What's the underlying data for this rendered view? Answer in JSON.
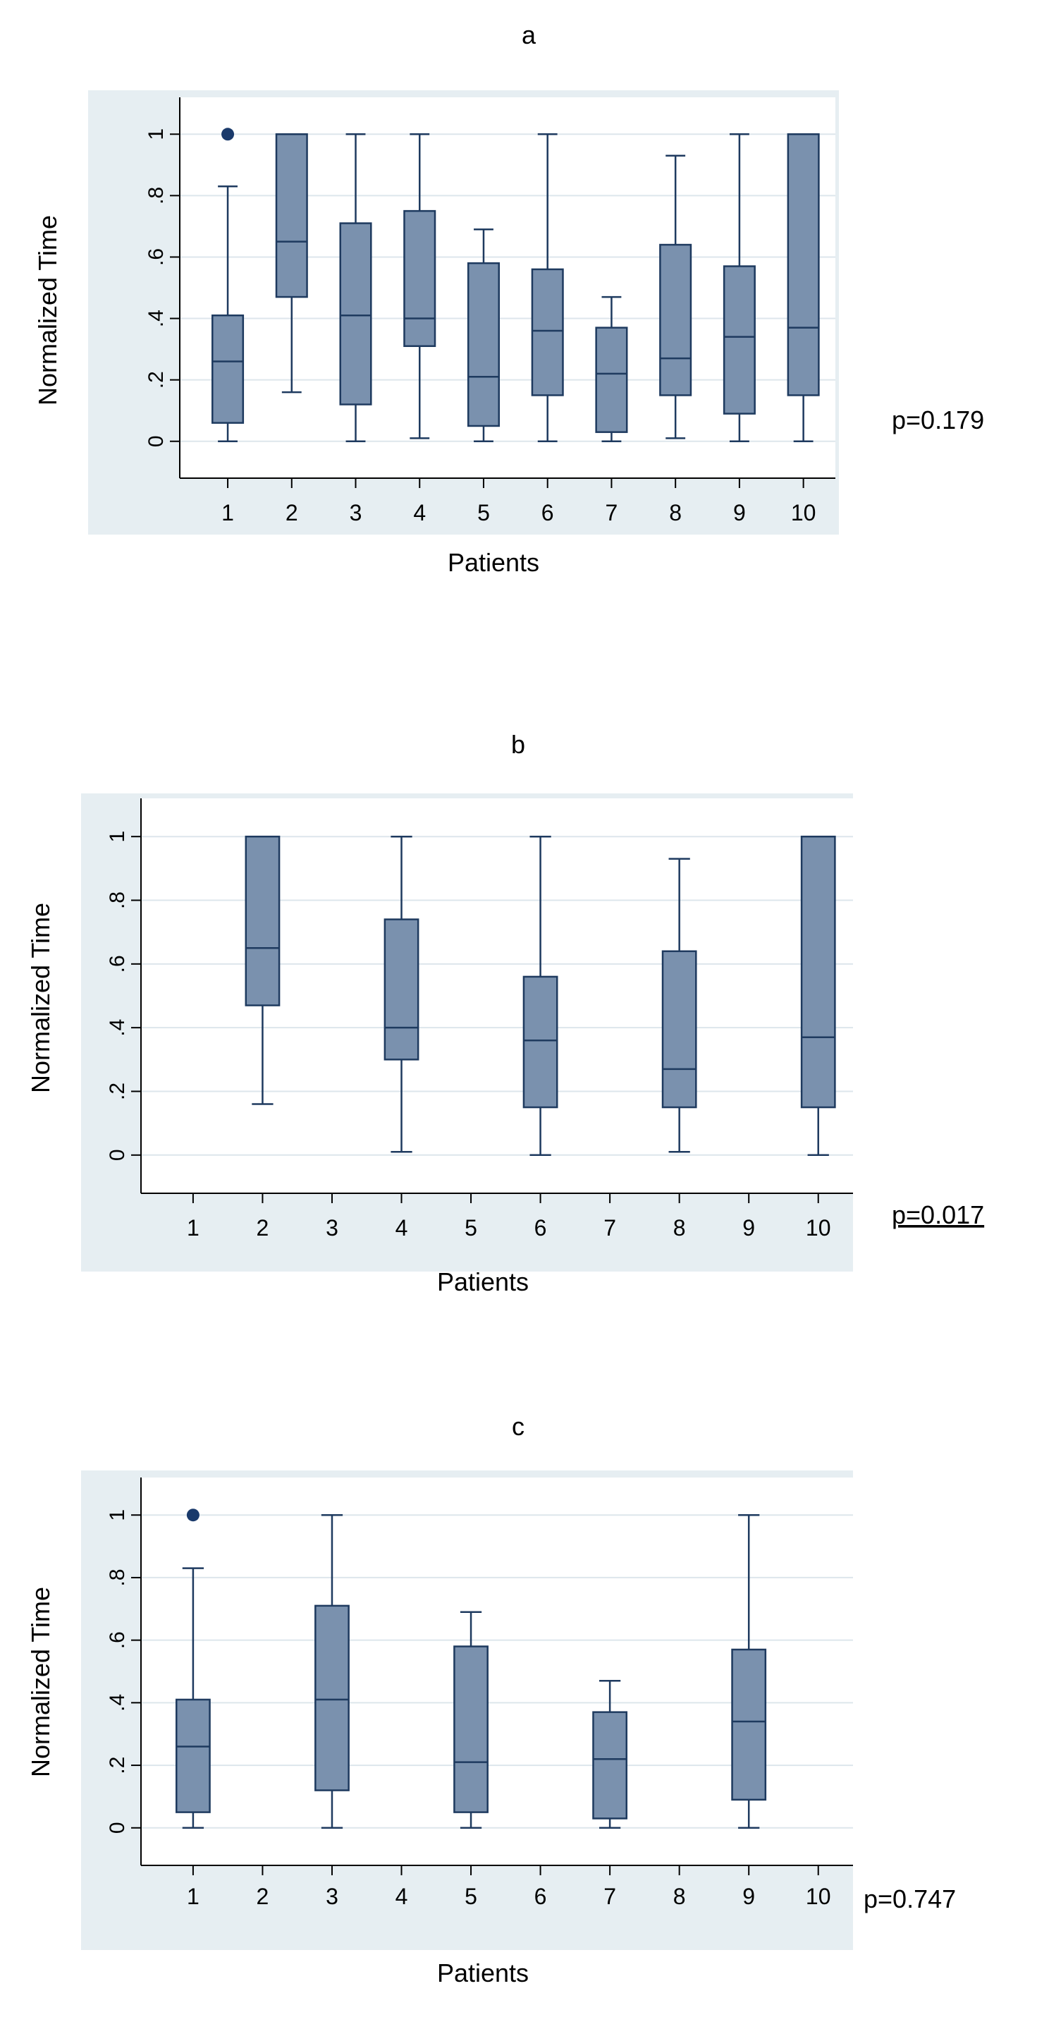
{
  "chart_data": [
    {
      "type": "box",
      "title": "a",
      "xlabel": "Patients",
      "ylabel": "Normalized Time",
      "annotation": "p=0.179",
      "annotation_underlined": false,
      "categories": [
        "1",
        "2",
        "3",
        "4",
        "5",
        "6",
        "7",
        "8",
        "9",
        "10"
      ],
      "y_ticks": [
        0,
        0.2,
        0.4,
        0.6,
        0.8,
        1
      ],
      "y_tick_labels": [
        "0",
        ".2",
        ".4",
        ".6",
        ".8",
        "1"
      ],
      "ylim": [
        -0.12,
        1.12
      ],
      "grid": true,
      "boxes": [
        {
          "category": "1",
          "min": 0.0,
          "q1": 0.06,
          "median": 0.26,
          "q3": 0.41,
          "max": 0.83,
          "outliers": [
            1.0
          ]
        },
        {
          "category": "2",
          "min": 0.16,
          "q1": 0.47,
          "median": 0.65,
          "q3": 1.0,
          "max": 1.0,
          "outliers": []
        },
        {
          "category": "3",
          "min": 0.0,
          "q1": 0.12,
          "median": 0.41,
          "q3": 0.71,
          "max": 1.0,
          "outliers": []
        },
        {
          "category": "4",
          "min": 0.01,
          "q1": 0.31,
          "median": 0.4,
          "q3": 0.75,
          "max": 1.0,
          "outliers": []
        },
        {
          "category": "5",
          "min": 0.0,
          "q1": 0.05,
          "median": 0.21,
          "q3": 0.58,
          "max": 0.69,
          "outliers": []
        },
        {
          "category": "6",
          "min": 0.0,
          "q1": 0.15,
          "median": 0.36,
          "q3": 0.56,
          "max": 1.0,
          "outliers": []
        },
        {
          "category": "7",
          "min": 0.0,
          "q1": 0.03,
          "median": 0.22,
          "q3": 0.37,
          "max": 0.47,
          "outliers": []
        },
        {
          "category": "8",
          "min": 0.01,
          "q1": 0.15,
          "median": 0.27,
          "q3": 0.64,
          "max": 0.93,
          "outliers": []
        },
        {
          "category": "9",
          "min": 0.0,
          "q1": 0.09,
          "median": 0.34,
          "q3": 0.57,
          "max": 1.0,
          "outliers": []
        },
        {
          "category": "10",
          "min": 0.0,
          "q1": 0.15,
          "median": 0.37,
          "q3": 1.0,
          "max": 1.0,
          "outliers": []
        }
      ]
    },
    {
      "type": "box",
      "title": "b",
      "xlabel": "Patients",
      "ylabel": "Normalized Time",
      "annotation": "p=0.017",
      "annotation_underlined": true,
      "categories": [
        "1",
        "2",
        "3",
        "4",
        "5",
        "6",
        "7",
        "8",
        "9",
        "10"
      ],
      "y_ticks": [
        0,
        0.2,
        0.4,
        0.6,
        0.8,
        1
      ],
      "y_tick_labels": [
        "0",
        ".2",
        ".4",
        ".6",
        ".8",
        "1"
      ],
      "ylim": [
        -0.12,
        1.12
      ],
      "grid": true,
      "boxes": [
        {
          "category": "2",
          "min": 0.16,
          "q1": 0.47,
          "median": 0.65,
          "q3": 1.0,
          "max": 1.0,
          "outliers": []
        },
        {
          "category": "4",
          "min": 0.01,
          "q1": 0.3,
          "median": 0.4,
          "q3": 0.74,
          "max": 1.0,
          "outliers": []
        },
        {
          "category": "6",
          "min": 0.0,
          "q1": 0.15,
          "median": 0.36,
          "q3": 0.56,
          "max": 1.0,
          "outliers": []
        },
        {
          "category": "8",
          "min": 0.01,
          "q1": 0.15,
          "median": 0.27,
          "q3": 0.64,
          "max": 0.93,
          "outliers": []
        },
        {
          "category": "10",
          "min": 0.0,
          "q1": 0.15,
          "median": 0.37,
          "q3": 1.0,
          "max": 1.0,
          "outliers": []
        }
      ]
    },
    {
      "type": "box",
      "title": "c",
      "xlabel": "Patients",
      "ylabel": "Normalized Time",
      "annotation": "p=0.747",
      "annotation_underlined": false,
      "categories": [
        "1",
        "2",
        "3",
        "4",
        "5",
        "6",
        "7",
        "8",
        "9",
        "10"
      ],
      "y_ticks": [
        0,
        0.2,
        0.4,
        0.6,
        0.8,
        1
      ],
      "y_tick_labels": [
        "0",
        ".2",
        ".4",
        ".6",
        ".8",
        "1"
      ],
      "ylim": [
        -0.12,
        1.12
      ],
      "grid": true,
      "boxes": [
        {
          "category": "1",
          "min": 0.0,
          "q1": 0.05,
          "median": 0.26,
          "q3": 0.41,
          "max": 0.83,
          "outliers": [
            1.0
          ]
        },
        {
          "category": "3",
          "min": 0.0,
          "q1": 0.12,
          "median": 0.41,
          "q3": 0.71,
          "max": 1.0,
          "outliers": []
        },
        {
          "category": "5",
          "min": 0.0,
          "q1": 0.05,
          "median": 0.21,
          "q3": 0.58,
          "max": 0.69,
          "outliers": []
        },
        {
          "category": "7",
          "min": 0.0,
          "q1": 0.03,
          "median": 0.22,
          "q3": 0.37,
          "max": 0.47,
          "outliers": []
        },
        {
          "category": "9",
          "min": 0.0,
          "q1": 0.09,
          "median": 0.34,
          "q3": 0.57,
          "max": 1.0,
          "outliers": []
        }
      ]
    }
  ],
  "colors": {
    "box_fill": "#7a91ae",
    "box_stroke": "#1e3a5f",
    "outlier": "#1a3a6b",
    "panel_bg": "#e6eef2",
    "plot_bg": "#ffffff",
    "grid": "#dde6ec",
    "axis": "#000000",
    "text": "#000000"
  }
}
